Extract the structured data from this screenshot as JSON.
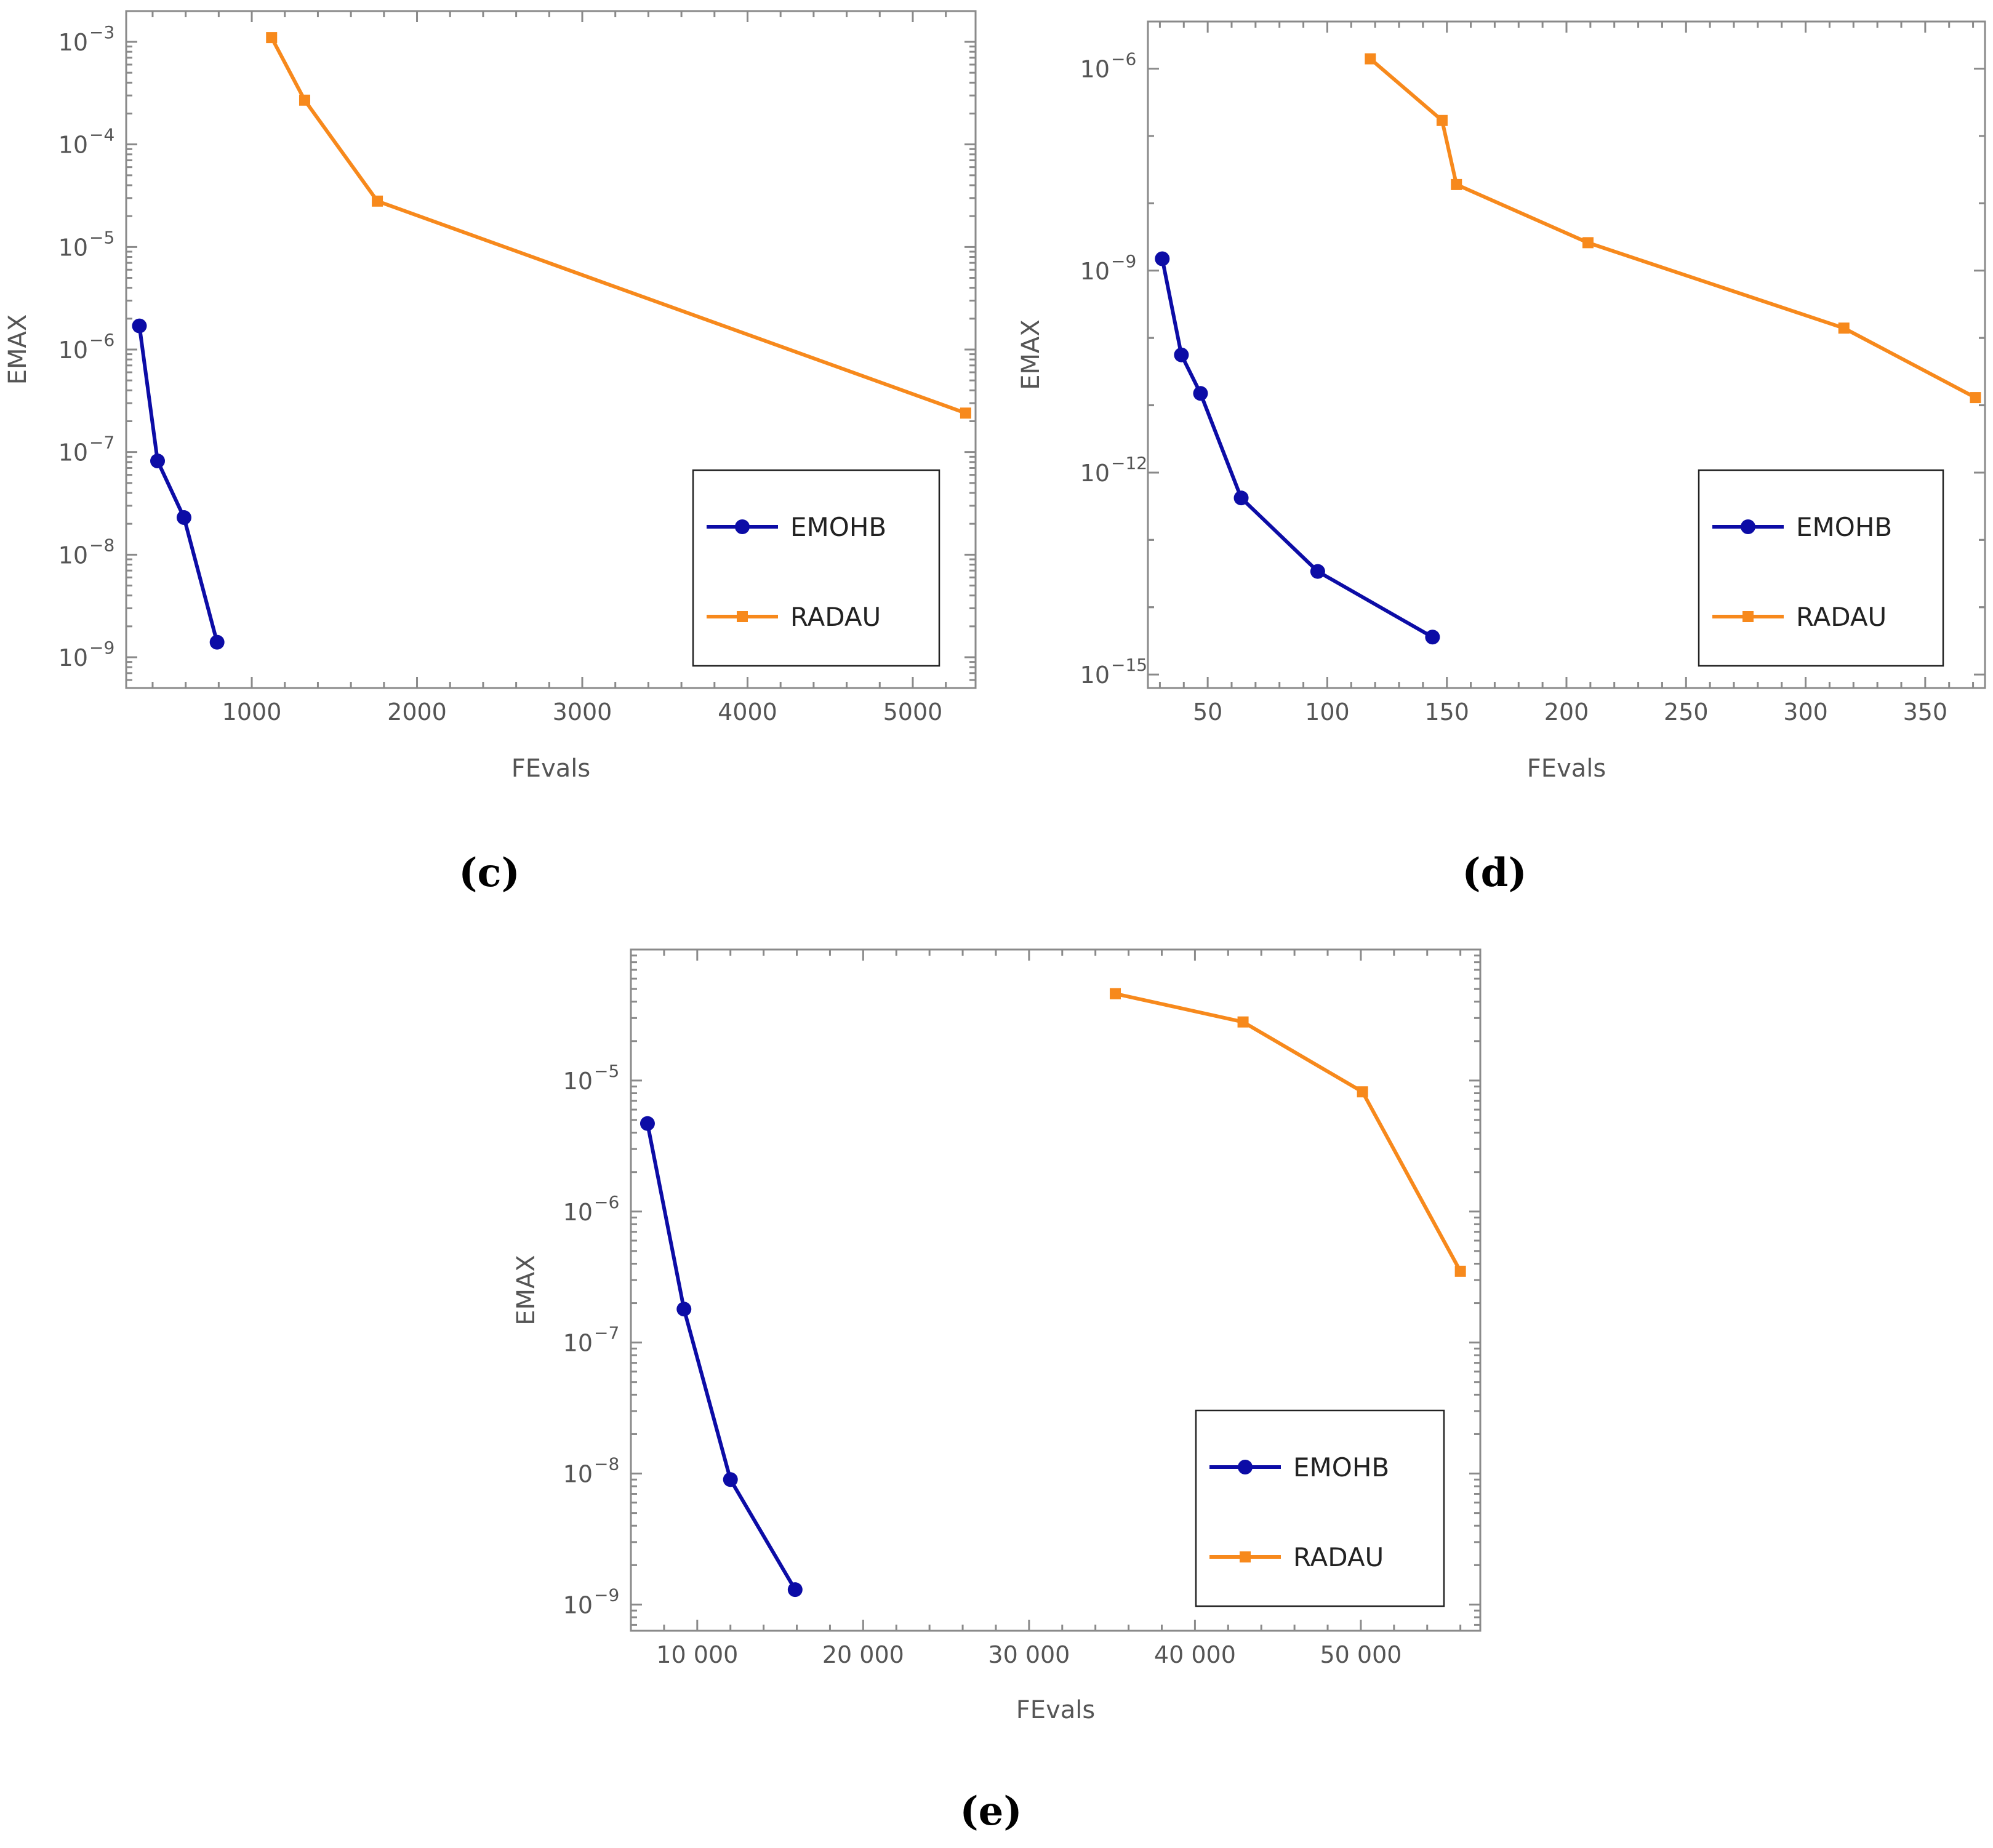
{
  "chart_data": [
    {
      "type": "line",
      "panel": "c",
      "caption": "(c)",
      "xlabel": "FEvals",
      "ylabel": "EMAX",
      "yscale": "log",
      "xlim": [
        240,
        5380
      ],
      "ylim_exp": [
        -9.3,
        -2.7
      ],
      "xticks": [
        1000,
        2000,
        3000,
        4000,
        5000
      ],
      "xtick_labels": [
        "1000",
        "2000",
        "3000",
        "4000",
        "5000"
      ],
      "yticks_exp": [
        -9,
        -8,
        -7,
        -6,
        -5,
        -4,
        -3
      ],
      "ytick_labels": [
        "10",
        "10",
        "10",
        "10",
        "10",
        "10",
        "10"
      ],
      "ytick_exponents": [
        "−9",
        "−8",
        "−7",
        "−6",
        "−5",
        "−4",
        "−3"
      ],
      "legend_position": "lower-right",
      "series": [
        {
          "name": "EMOHB",
          "color": "#0c0ca6",
          "marker": "circle",
          "x": [
            320,
            430,
            590,
            790
          ],
          "y": [
            1.7e-06,
            8.2e-08,
            2.3e-08,
            1.4e-09
          ]
        },
        {
          "name": "RADAU",
          "color": "#f7891c",
          "marker": "square",
          "x": [
            1120,
            1320,
            1760,
            5320
          ],
          "y": [
            0.0011,
            0.00027,
            2.8e-05,
            2.4e-07
          ]
        }
      ]
    },
    {
      "type": "line",
      "panel": "d",
      "caption": "(d)",
      "xlabel": "FEvals",
      "ylabel": "EMAX",
      "yscale": "log",
      "xlim": [
        25,
        375
      ],
      "ylim_exp": [
        -15.2,
        -5.3
      ],
      "xticks": [
        50,
        100,
        150,
        200,
        250,
        300,
        350
      ],
      "xtick_labels": [
        "50",
        "100",
        "150",
        "200",
        "250",
        "300",
        "350"
      ],
      "yticks_exp": [
        -15,
        -12,
        -9,
        -6
      ],
      "ytick_labels": [
        "10",
        "10",
        "10",
        "10"
      ],
      "ytick_exponents": [
        "−15",
        "−12",
        "−9",
        "−6"
      ],
      "legend_position": "lower-right",
      "series": [
        {
          "name": "EMOHB",
          "color": "#0c0ca6",
          "marker": "circle",
          "x": [
            31,
            39,
            47,
            64,
            96,
            144
          ],
          "y": [
            1.5e-09,
            5.6e-11,
            1.5e-11,
            4.2e-13,
            3.4e-14,
            3.6e-15
          ]
        },
        {
          "name": "RADAU",
          "color": "#f7891c",
          "marker": "square",
          "x": [
            118,
            148,
            154,
            209,
            316,
            371
          ],
          "y": [
            1.4e-06,
            1.7e-07,
            1.9e-08,
            2.6e-09,
            1.4e-10,
            1.3e-11
          ]
        }
      ]
    },
    {
      "type": "line",
      "panel": "e",
      "caption": "(e)",
      "xlabel": "FEvals",
      "ylabel": "EMAX",
      "yscale": "log",
      "xlim": [
        6000,
        57200
      ],
      "ylim_exp": [
        -9.2,
        -4.0
      ],
      "xticks": [
        10000,
        20000,
        30000,
        40000,
        50000
      ],
      "xtick_labels": [
        "10 000",
        "20 000",
        "30 000",
        "40 000",
        "50 000"
      ],
      "yticks_exp": [
        -9,
        -8,
        -7,
        -6,
        -5
      ],
      "ytick_labels": [
        "10",
        "10",
        "10",
        "10",
        "10"
      ],
      "ytick_exponents": [
        "−9",
        "−8",
        "−7",
        "−6",
        "−5"
      ],
      "legend_position": "lower-right",
      "series": [
        {
          "name": "EMOHB",
          "color": "#0c0ca6",
          "marker": "circle",
          "x": [
            7000,
            9200,
            12000,
            15900
          ],
          "y": [
            4.7e-06,
            1.8e-07,
            9e-09,
            1.3e-09
          ]
        },
        {
          "name": "RADAU",
          "color": "#f7891c",
          "marker": "square",
          "x": [
            35200,
            42900,
            50100,
            56000
          ],
          "y": [
            4.6e-05,
            2.8e-05,
            8.2e-06,
            3.5e-07
          ]
        }
      ]
    }
  ]
}
